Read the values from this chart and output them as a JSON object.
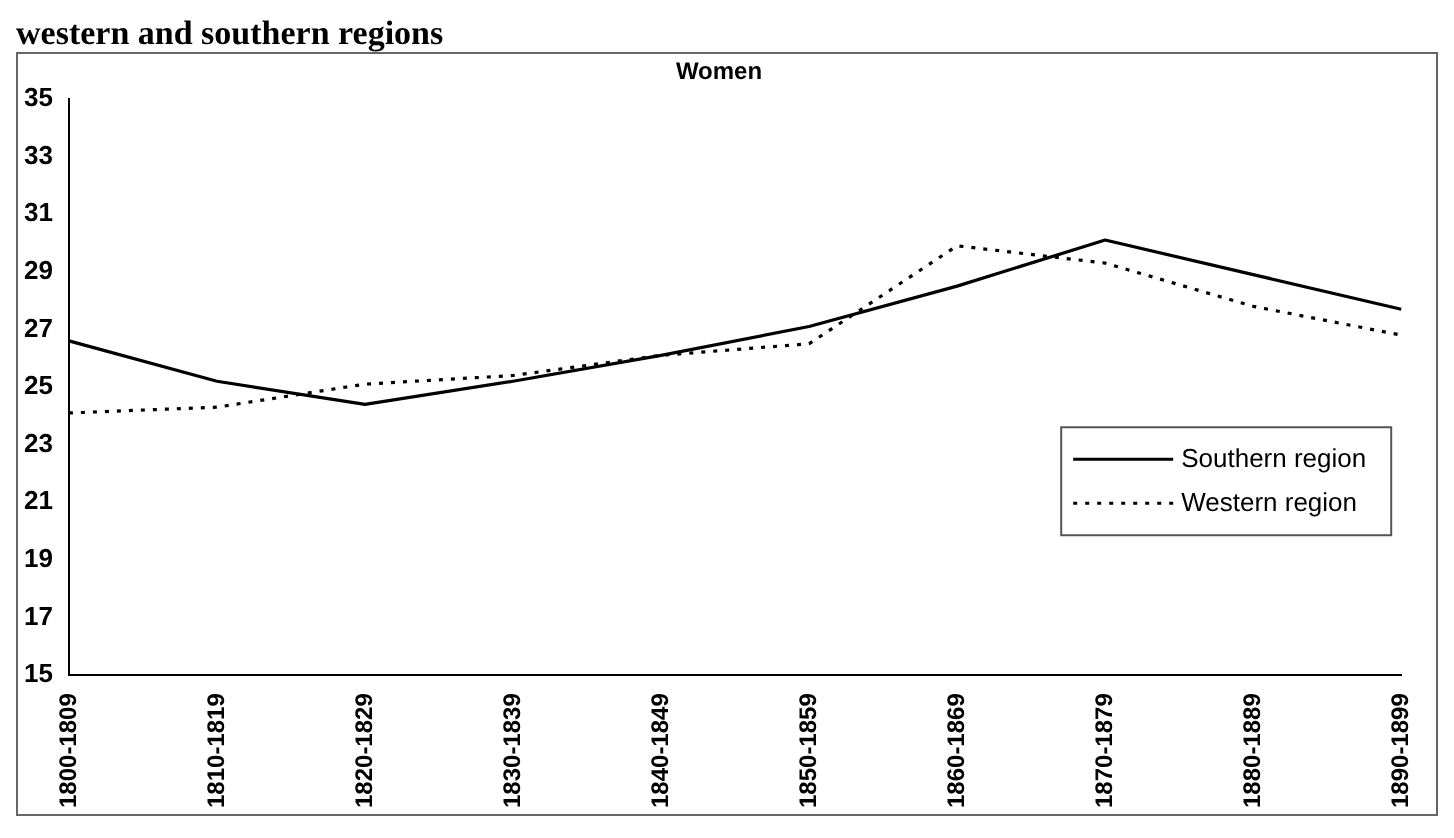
{
  "chart_data": {
    "type": "line",
    "title": "Women",
    "annotations": [
      "western and southern regions"
    ],
    "categories": [
      "1800-1809",
      "1810-1819",
      "1820-1829",
      "1830-1839",
      "1840-1849",
      "1850-1859",
      "1860-1869",
      "1870-1879",
      "1880-1889",
      "1890-1899"
    ],
    "series": [
      {
        "name": "Southern region",
        "color": "#000000",
        "line_style": "solid",
        "values": [
          26.6,
          25.2,
          24.4,
          25.2,
          26.1,
          27.1,
          28.5,
          30.1,
          28.9,
          27.7
        ]
      },
      {
        "name": "Western region",
        "color": "#000000",
        "line_style": "dotted",
        "values": [
          24.1,
          24.3,
          25.1,
          25.4,
          26.1,
          26.5,
          29.9,
          29.3,
          27.8,
          26.8
        ]
      }
    ],
    "ylim": [
      15,
      35
    ],
    "yticks": [
      15,
      17,
      19,
      21,
      23,
      25,
      27,
      29,
      31,
      33,
      35
    ],
    "grid": false,
    "legend": "right",
    "marker": "none"
  }
}
